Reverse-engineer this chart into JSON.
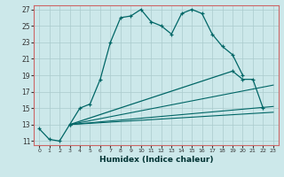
{
  "xlabel": "Humidex (Indice chaleur)",
  "bg_color": "#cce8ea",
  "grid_color": "#aacbcd",
  "line_color": "#006666",
  "spine_color": "#cc6666",
  "xlim": [
    -0.5,
    23.5
  ],
  "ylim": [
    10.5,
    27.5
  ],
  "yticks": [
    11,
    13,
    15,
    17,
    19,
    21,
    23,
    25,
    27
  ],
  "xticks": [
    0,
    1,
    2,
    3,
    4,
    5,
    6,
    7,
    8,
    9,
    10,
    11,
    12,
    13,
    14,
    15,
    16,
    17,
    18,
    19,
    20,
    21,
    22,
    23
  ],
  "line1_x": [
    0,
    1,
    2,
    3,
    4,
    5,
    6,
    7,
    8,
    9,
    10,
    11,
    12,
    13,
    14,
    15,
    16,
    17,
    18,
    19,
    20
  ],
  "line1_y": [
    12.5,
    11.2,
    11.0,
    13.0,
    15.0,
    15.5,
    18.5,
    23.0,
    26.0,
    26.2,
    27.0,
    25.5,
    25.0,
    24.0,
    26.5,
    27.0,
    26.5,
    24.0,
    22.5,
    21.5,
    19.0
  ],
  "line2_x": [
    3,
    19,
    20,
    21,
    22
  ],
  "line2_y": [
    13.0,
    19.5,
    18.5,
    18.5,
    15.0
  ],
  "line3_x": [
    3,
    23
  ],
  "line3_y": [
    13.0,
    15.2
  ],
  "line4_x": [
    3,
    23
  ],
  "line4_y": [
    13.0,
    17.8
  ],
  "line5_x": [
    3,
    23
  ],
  "line5_y": [
    13.0,
    14.5
  ]
}
